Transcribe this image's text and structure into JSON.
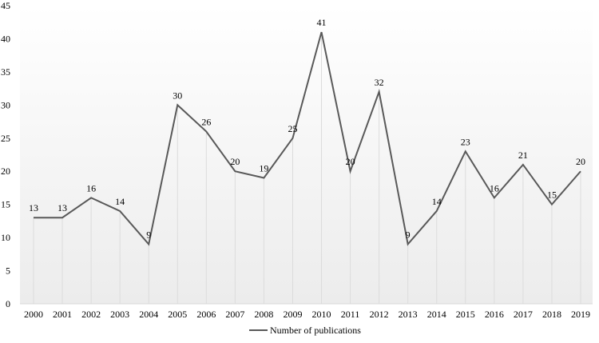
{
  "chart_data": {
    "type": "line",
    "title": "",
    "xlabel": "",
    "ylabel": "",
    "categories": [
      "2000",
      "2001",
      "2002",
      "2003",
      "2004",
      "2005",
      "2006",
      "2007",
      "2008",
      "2009",
      "2010",
      "2011",
      "2012",
      "2013",
      "2014",
      "2015",
      "2016",
      "2017",
      "2018",
      "2019"
    ],
    "series": [
      {
        "name": "Number of publications",
        "values": [
          13,
          13,
          16,
          14,
          9,
          30,
          26,
          20,
          19,
          25,
          41,
          20,
          32,
          9,
          14,
          23,
          16,
          21,
          15,
          20
        ],
        "color": "#595959"
      }
    ],
    "ylim": [
      0,
      45
    ],
    "yticks": [
      0,
      5,
      10,
      15,
      20,
      25,
      30,
      35,
      40,
      45
    ],
    "grid": "vertical drop lines only",
    "data_labels": true,
    "legend_position": "bottom-center",
    "background": "gradient white to light gray"
  }
}
